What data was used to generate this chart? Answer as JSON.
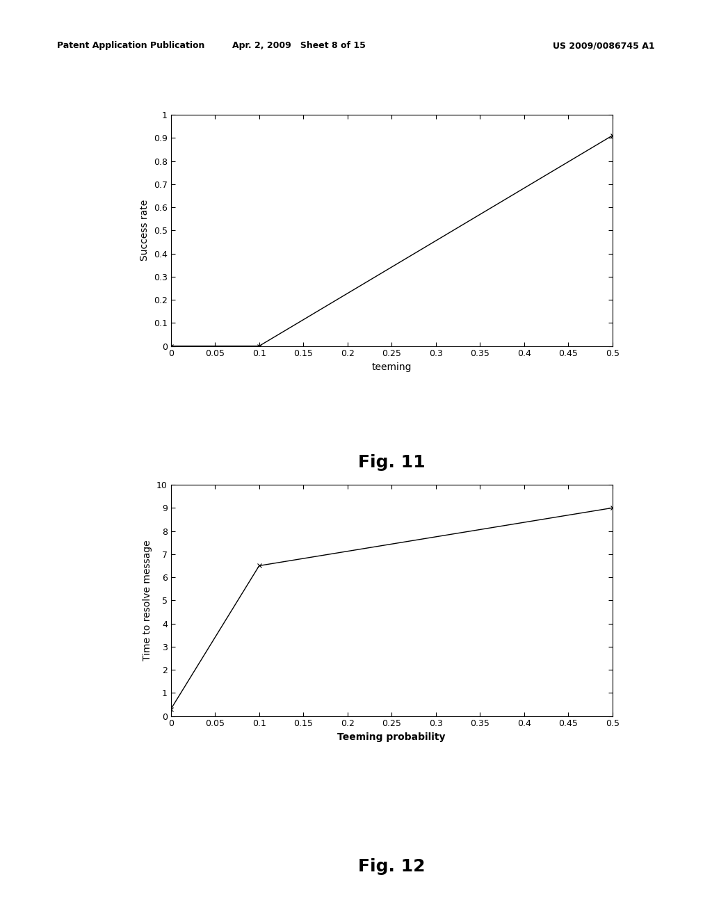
{
  "fig11": {
    "x": [
      0.0,
      0.1,
      0.5
    ],
    "y": [
      0.0,
      0.0,
      0.91
    ],
    "xlabel": "teeming",
    "ylabel": "Success rate",
    "xlim": [
      0,
      0.5
    ],
    "ylim": [
      0,
      1
    ],
    "xticks": [
      0,
      0.05,
      0.1,
      0.15,
      0.2,
      0.25,
      0.3,
      0.35,
      0.4,
      0.45,
      0.5
    ],
    "yticks": [
      0,
      0.1,
      0.2,
      0.3,
      0.4,
      0.5,
      0.6,
      0.7,
      0.8,
      0.9,
      1
    ],
    "caption": "Fig. 11"
  },
  "fig12": {
    "x": [
      0.0,
      0.1,
      0.5
    ],
    "y": [
      0.3,
      6.5,
      9.0
    ],
    "xlabel": "Teeming probability",
    "ylabel": "Time to resolve message",
    "xlim": [
      0,
      0.5
    ],
    "ylim": [
      0,
      10
    ],
    "xticks": [
      0,
      0.05,
      0.1,
      0.15,
      0.2,
      0.25,
      0.3,
      0.35,
      0.4,
      0.45,
      0.5
    ],
    "yticks": [
      0,
      1,
      2,
      3,
      4,
      5,
      6,
      7,
      8,
      9,
      10
    ],
    "caption": "Fig. 12"
  },
  "header_left": "Patent Application Publication",
  "header_center": "Apr. 2, 2009   Sheet 8 of 15",
  "header_right": "US 2009/0086745 A1",
  "line_color": "#000000",
  "bg_color": "#ffffff",
  "font_size_tick": 9,
  "font_size_label": 10,
  "font_size_caption": 18,
  "font_size_header": 9
}
